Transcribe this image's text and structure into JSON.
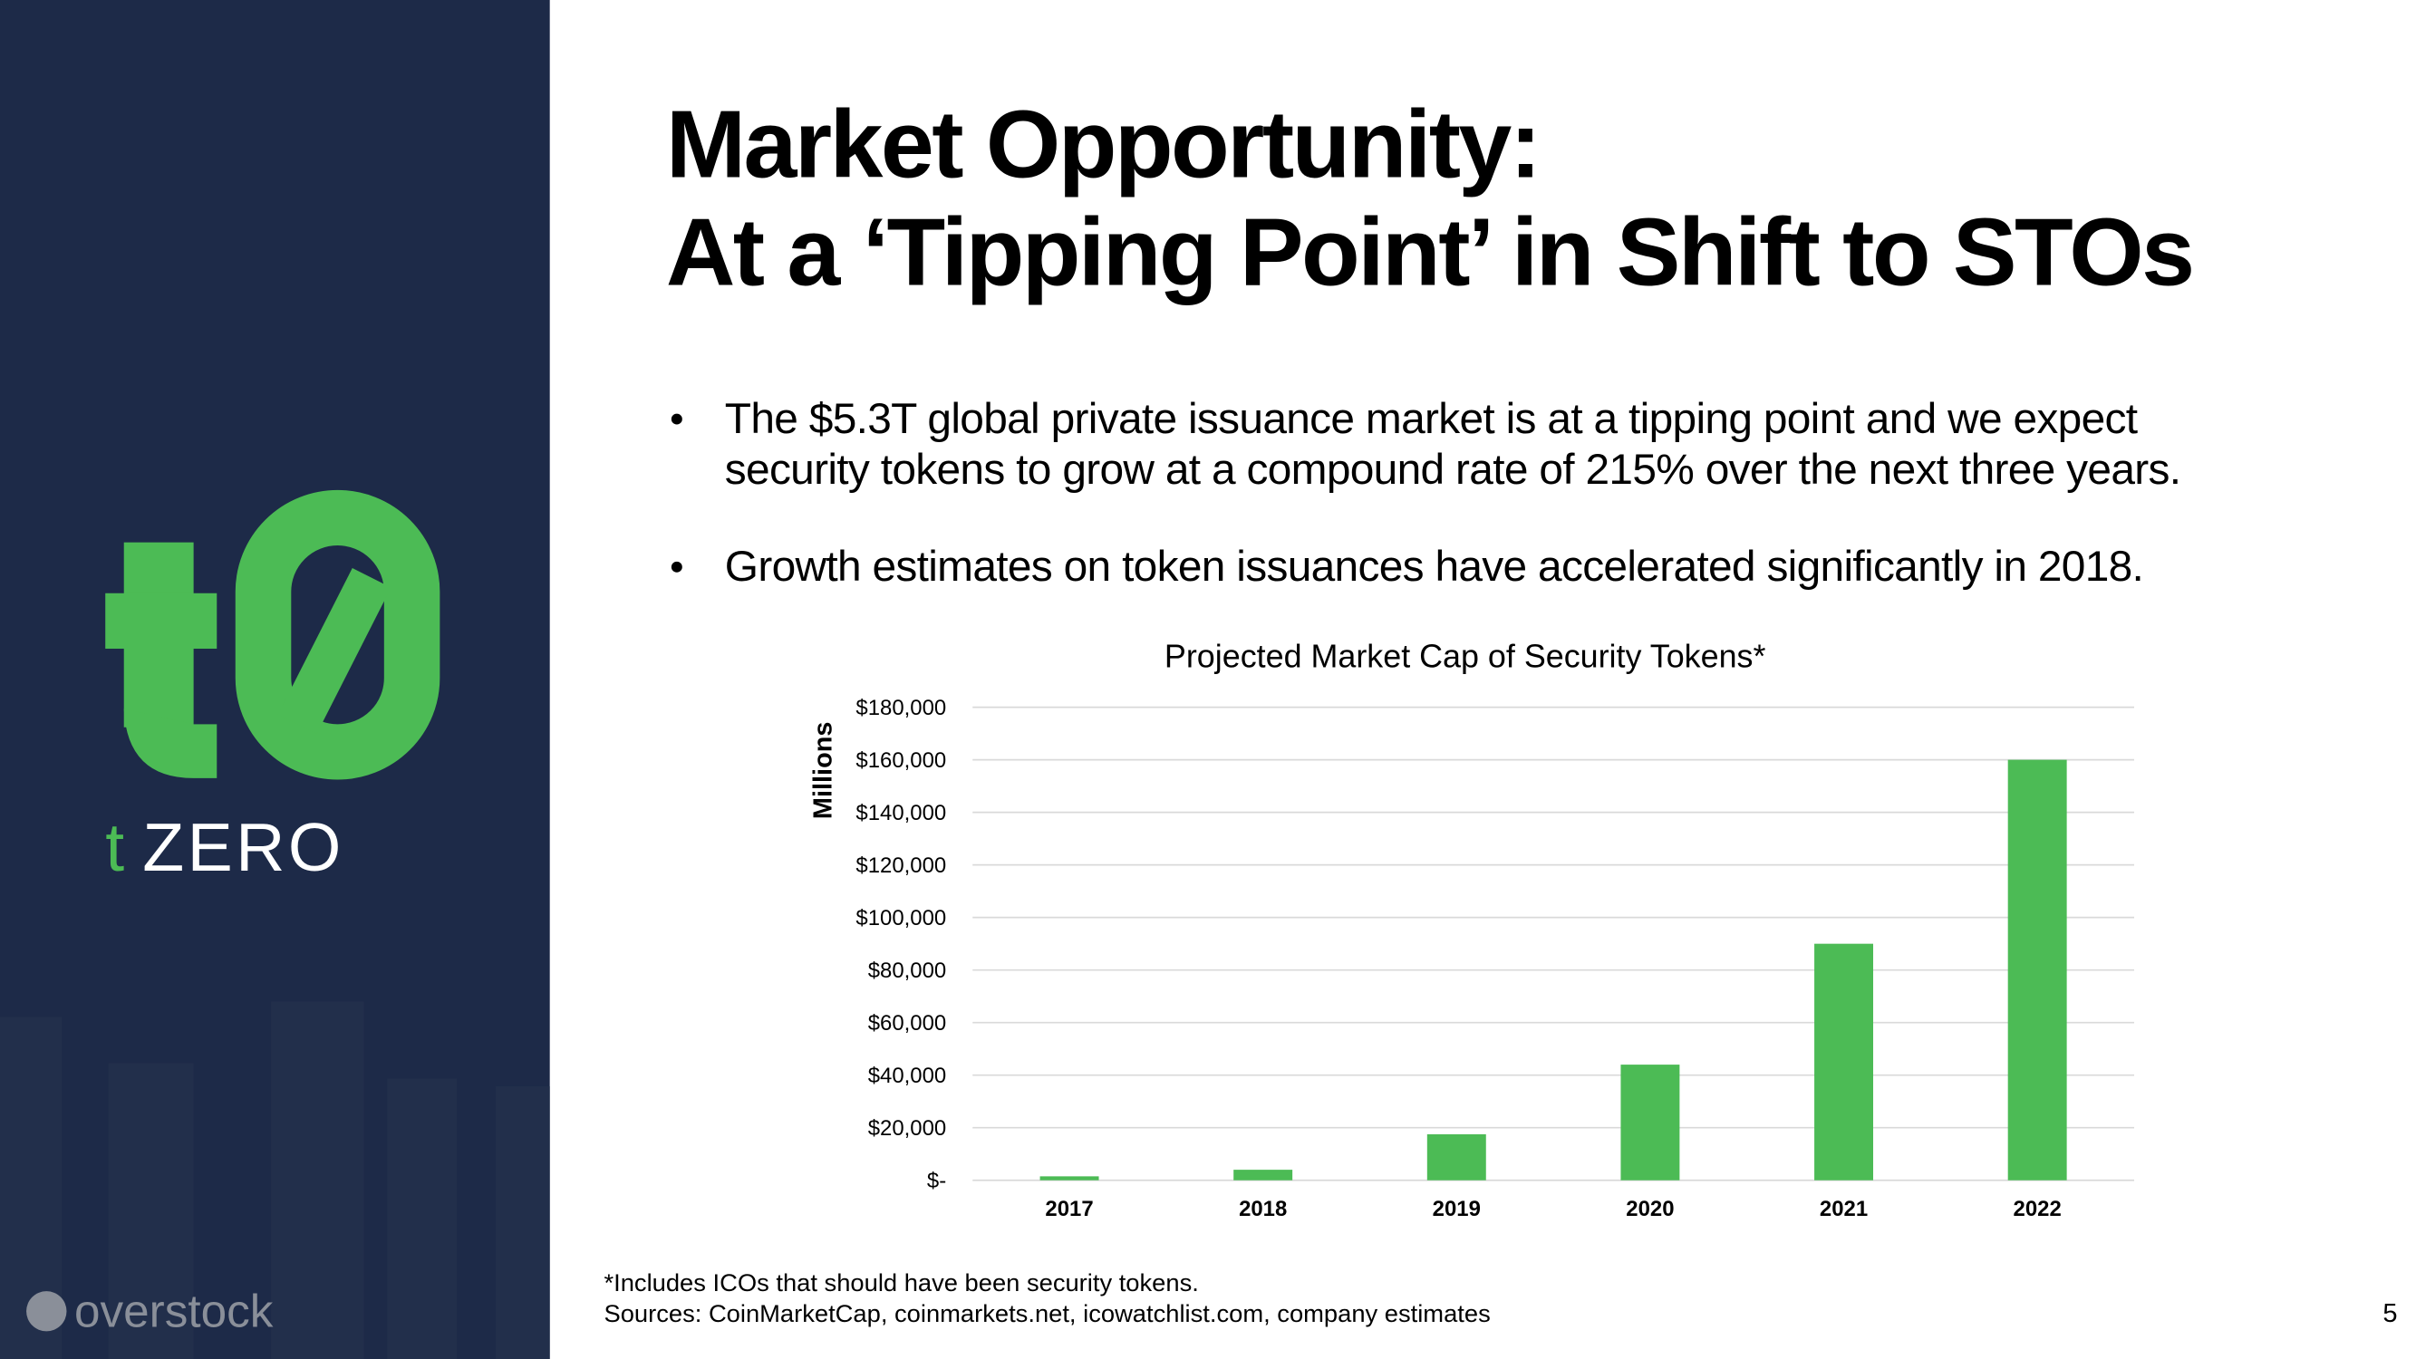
{
  "slide": {
    "title_lines": [
      "Market Opportunity:",
      "At a ‘Tipping Point’ in Shift to STOs"
    ],
    "bullets": [
      [
        "The $5.3T global private issuance market is at a tipping point and we expect",
        "security tokens to grow at a compound rate of 215% over the next three years."
      ],
      [
        "Growth estimates on token issuances have accelerated significantly in 2018."
      ]
    ],
    "brand_prefix": "t",
    "brand_name": "ZERO",
    "partner": "overstock",
    "footnotes": [
      "*Includes ICOs that should have been security tokens.",
      "Sources: CoinMarketCap, coinmarkets.net, icowatchlist.com, company estimates"
    ],
    "page_number": "5"
  },
  "chart_data": {
    "type": "bar",
    "title": "Projected Market Cap of Security Tokens*",
    "y_label": "Millions",
    "categories": [
      "2017",
      "2018",
      "2019",
      "2020",
      "2021",
      "2022"
    ],
    "values": [
      1500,
      4000,
      17500,
      44000,
      90000,
      160000
    ],
    "color": "#4cbb55",
    "ylim": [
      0,
      180000
    ],
    "yticks": [
      {
        "value": 0,
        "label": "$-"
      },
      {
        "value": 20000,
        "label": "$20,000"
      },
      {
        "value": 40000,
        "label": "$40,000"
      },
      {
        "value": 60000,
        "label": "$60,000"
      },
      {
        "value": 80000,
        "label": "$80,000"
      },
      {
        "value": 100000,
        "label": "$100,000"
      },
      {
        "value": 120000,
        "label": "$120,000"
      },
      {
        "value": 140000,
        "label": "$140,000"
      },
      {
        "value": 160000,
        "label": "$160,000"
      },
      {
        "value": 180000,
        "label": "$180,000"
      }
    ],
    "grid": true
  }
}
